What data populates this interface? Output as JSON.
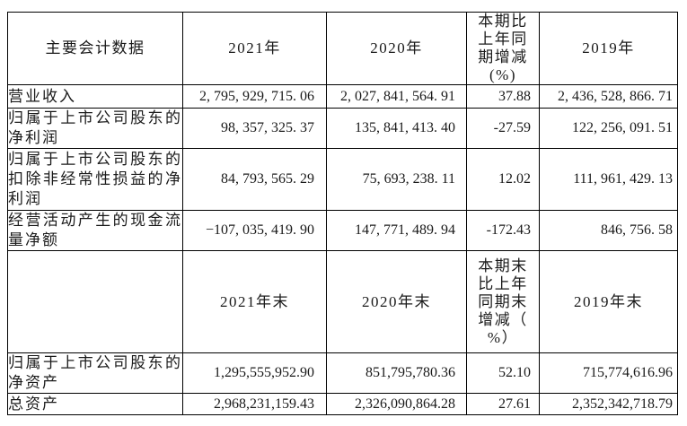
{
  "page": {
    "background_color": "#ffffff",
    "text_color": "#1a1a1a",
    "border_color": "#000000"
  },
  "table": {
    "rows": [
      {
        "type": "header",
        "cells": [
          "主要会计数据",
          "2021年",
          "2020年",
          "本期比\n上年同\n期增减\n(%)",
          "2019年"
        ]
      },
      {
        "type": "data",
        "cells": [
          "营业收入",
          "2, 795, 929, 715. 06",
          "2, 027, 841, 564. 91",
          "37.88",
          "2, 436, 528, 866. 71"
        ]
      },
      {
        "type": "data",
        "cells": [
          "归属于上市公司股东的净利润",
          "98, 357, 325. 37",
          "135, 841, 413. 40",
          "-27.59",
          "122, 256, 091. 51"
        ]
      },
      {
        "type": "data",
        "cells": [
          "归属于上市公司股东的扣除非经常性损益的净利润",
          "84, 793, 565. 29",
          "75, 693, 238. 11",
          "12.02",
          "111, 961, 429. 13"
        ]
      },
      {
        "type": "data",
        "cells": [
          "经营活动产生的现金流量净额",
          "−107, 035, 419. 90",
          "147, 771, 489. 94",
          "-172.43",
          "846, 756. 58"
        ]
      },
      {
        "type": "header",
        "cells": [
          "",
          "2021年末",
          "2020年末",
          "本期末\n比上年\n同期末\n增减（\n%）",
          "2019年末"
        ]
      },
      {
        "type": "data",
        "cells": [
          "归属于上市公司股东的净资产",
          "1,295,555,952.90",
          "851,795,780.36",
          "52.10",
          "715,774,616.96"
        ]
      },
      {
        "type": "data",
        "cells": [
          "总资产",
          "2,968,231,159.43",
          "2,326,090,864.28",
          "27.61",
          "2,352,342,718.79"
        ]
      }
    ]
  }
}
